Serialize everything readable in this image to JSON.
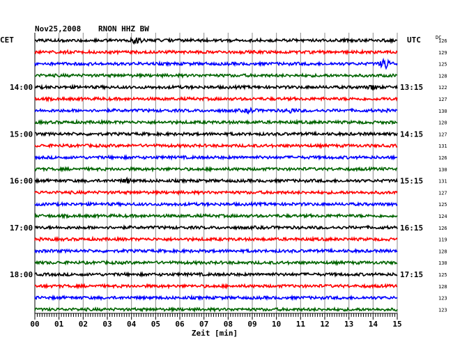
{
  "header": {
    "date": "Nov25,2008",
    "station": "RNON HHZ BW",
    "left_tz": "CET",
    "right_tz": "UTC",
    "dc_label": "DC"
  },
  "chart_data": {
    "type": "line",
    "title": "Nov25,2008   RNON HHZ BW",
    "xlabel": "Zeit [min]",
    "xlim": [
      0,
      15
    ],
    "x_ticks": [
      "00",
      "01",
      "02",
      "03",
      "04",
      "05",
      "06",
      "07",
      "08",
      "09",
      "10",
      "11",
      "12",
      "13",
      "14",
      "15"
    ],
    "grid": true,
    "trace_colors": [
      "#000000",
      "#ff0000",
      "#0000ff",
      "#006400"
    ],
    "left_time_labels": [
      {
        "row": 4,
        "label": "14:00"
      },
      {
        "row": 8,
        "label": "15:00"
      },
      {
        "row": 12,
        "label": "16:00"
      },
      {
        "row": 16,
        "label": "17:00"
      },
      {
        "row": 20,
        "label": "18:00"
      }
    ],
    "right_time_labels": [
      {
        "row": 4,
        "label": "13:15"
      },
      {
        "row": 8,
        "label": "14:15"
      },
      {
        "row": 12,
        "label": "15:15"
      },
      {
        "row": 16,
        "label": "16:15"
      },
      {
        "row": 20,
        "label": "17:15"
      }
    ],
    "dc_offsets": [
      126,
      129,
      125,
      128,
      122,
      127,
      130,
      120,
      127,
      131,
      126,
      130,
      131,
      127,
      125,
      124,
      126,
      119,
      128,
      130,
      125,
      128,
      123,
      123
    ],
    "events": [
      {
        "row": 0,
        "minute": 4.2,
        "amplitude": 6
      },
      {
        "row": 2,
        "minute": 14.5,
        "amplitude": 11
      },
      {
        "row": 4,
        "minute": 14.0,
        "amplitude": 4
      },
      {
        "row": 6,
        "minute": 8.9,
        "amplitude": 4
      },
      {
        "row": 6,
        "minute": 10.6,
        "amplitude": 3
      },
      {
        "row": 12,
        "minute": 3.8,
        "amplitude": 3
      }
    ]
  }
}
